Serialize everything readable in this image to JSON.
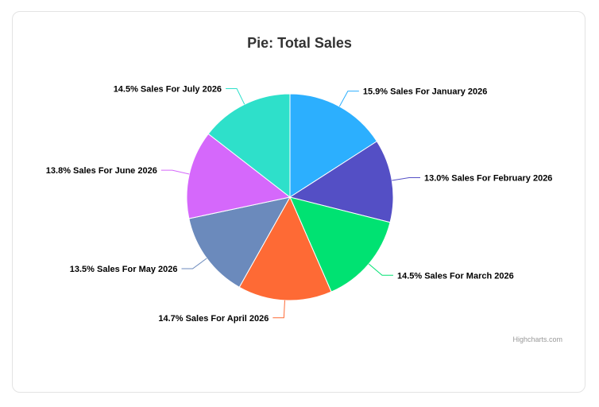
{
  "chart_data": {
    "type": "pie",
    "title": "Pie: Total Sales",
    "slices": [
      {
        "label": "15.9% Sales For January 2026",
        "value": 15.9,
        "color": "#2caffe"
      },
      {
        "label": "13.0% Sales For February 2026",
        "value": 13.0,
        "color": "#544fc5"
      },
      {
        "label": "14.5% Sales For March 2026",
        "value": 14.5,
        "color": "#00e272"
      },
      {
        "label": "14.7% Sales For April 2026",
        "value": 14.7,
        "color": "#fe6a35"
      },
      {
        "label": "13.5% Sales For May 2026",
        "value": 13.5,
        "color": "#6b8abc"
      },
      {
        "label": "13.8% Sales For June 2026",
        "value": 13.8,
        "color": "#d568fb"
      },
      {
        "label": "14.5% Sales For July 2026",
        "value": 14.5,
        "color": "#2ee0ca"
      }
    ]
  },
  "credits": "Highcharts.com"
}
